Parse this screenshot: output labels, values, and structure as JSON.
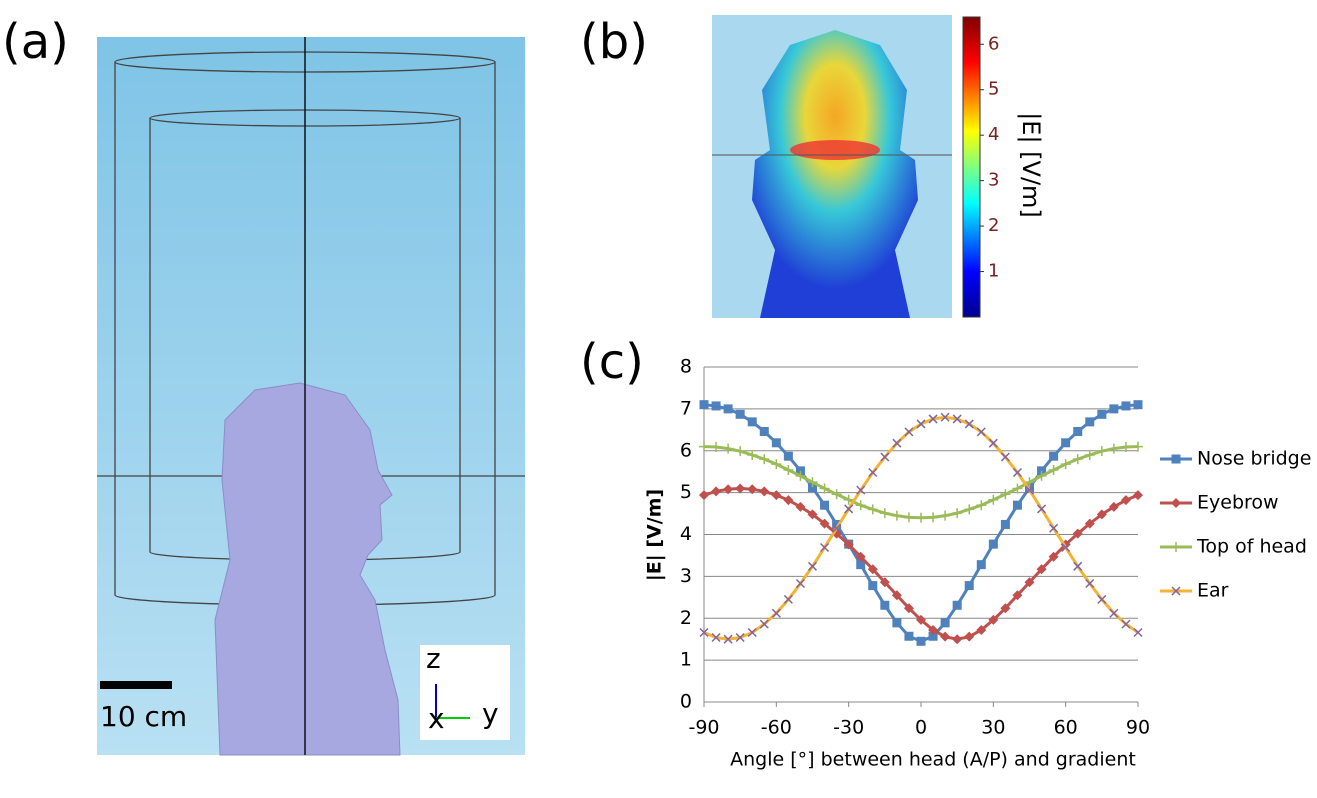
{
  "panels": {
    "a": {
      "label": "(a)",
      "scale_bar": "10 cm",
      "axis_z": "z",
      "axis_x": "x",
      "axis_y": "y"
    },
    "b": {
      "label": "(b)",
      "colorbar": {
        "label": "|E| [V/m]",
        "lim": [
          0,
          6.6
        ],
        "ticks": [
          1,
          2,
          3,
          4,
          5,
          6
        ]
      }
    },
    "c": {
      "label": "(c)"
    }
  },
  "chart_data": {
    "type": "line",
    "x_label": "Angle [°] between head (A/P) and gradient",
    "y_label": "|E| [V/m]",
    "x": [
      -90,
      -85,
      -80,
      -75,
      -70,
      -65,
      -60,
      -55,
      -50,
      -45,
      -40,
      -35,
      -30,
      -25,
      -20,
      -15,
      -10,
      -5,
      0,
      5,
      10,
      15,
      20,
      25,
      30,
      35,
      40,
      45,
      50,
      55,
      60,
      65,
      70,
      75,
      80,
      85,
      90
    ],
    "xlim": [
      -90,
      90
    ],
    "xticks": [
      -90,
      -60,
      -30,
      0,
      30,
      60,
      90
    ],
    "ylim": [
      0,
      8
    ],
    "yticks": [
      0,
      1,
      2,
      3,
      4,
      5,
      6,
      7,
      8
    ],
    "grid": true,
    "legend": "right",
    "series": [
      {
        "name": "Nose bridge",
        "color": "#4f81bd",
        "marker": "square",
        "marker_color": "#4f81bd",
        "values": [
          7.1,
          7.07,
          7.0,
          6.87,
          6.69,
          6.46,
          6.19,
          5.87,
          5.52,
          5.12,
          4.7,
          4.24,
          3.77,
          3.28,
          2.78,
          2.31,
          1.89,
          1.57,
          1.45,
          1.57,
          1.89,
          2.31,
          2.78,
          3.28,
          3.77,
          4.24,
          4.7,
          5.12,
          5.52,
          5.87,
          6.19,
          6.46,
          6.69,
          6.87,
          7.0,
          7.07,
          7.1
        ]
      },
      {
        "name": "Eyebrow",
        "color": "#c0504d",
        "marker": "diamond",
        "marker_color": "#c0504d",
        "values": [
          4.94,
          5.03,
          5.08,
          5.1,
          5.08,
          5.03,
          4.94,
          4.82,
          4.66,
          4.48,
          4.26,
          4.02,
          3.76,
          3.47,
          3.17,
          2.86,
          2.55,
          2.24,
          1.96,
          1.72,
          1.56,
          1.5,
          1.56,
          1.72,
          1.96,
          2.24,
          2.55,
          2.86,
          3.17,
          3.47,
          3.76,
          4.02,
          4.26,
          4.48,
          4.66,
          4.82,
          4.94
        ]
      },
      {
        "name": "Top of head",
        "color": "#9bbb59",
        "marker": "plus",
        "marker_color": "#9bbb59",
        "values": [
          6.1,
          6.09,
          6.05,
          5.99,
          5.9,
          5.8,
          5.68,
          5.54,
          5.4,
          5.25,
          5.1,
          4.96,
          4.83,
          4.7,
          4.6,
          4.51,
          4.45,
          4.41,
          4.4,
          4.41,
          4.45,
          4.51,
          4.6,
          4.7,
          4.83,
          4.96,
          5.1,
          5.25,
          5.4,
          5.54,
          5.68,
          5.8,
          5.9,
          5.99,
          6.05,
          6.09,
          6.1
        ]
      },
      {
        "name": "Ear",
        "color": "#f5b335",
        "marker": "cross",
        "marker_color": "#8064a2",
        "values": [
          1.66,
          1.54,
          1.5,
          1.54,
          1.66,
          1.86,
          2.12,
          2.45,
          2.83,
          3.24,
          3.69,
          4.15,
          4.61,
          5.06,
          5.48,
          5.85,
          6.18,
          6.45,
          6.64,
          6.76,
          6.8,
          6.76,
          6.64,
          6.45,
          6.18,
          5.85,
          5.48,
          5.06,
          4.61,
          4.15,
          3.69,
          3.24,
          2.83,
          2.45,
          2.12,
          1.86,
          1.66
        ]
      }
    ]
  }
}
